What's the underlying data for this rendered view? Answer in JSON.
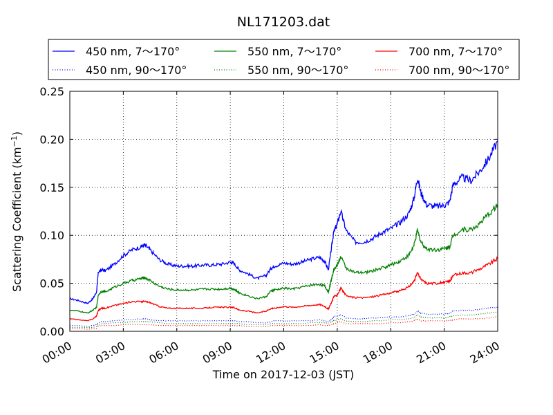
{
  "chart_data": {
    "type": "line",
    "title": "NL171203.dat",
    "xlabel": "Time on 2017-12-03 (JST)",
    "ylabel_main": "Scattering Coefficient (km",
    "ylabel_sup": "−1",
    "ylabel_end": ")",
    "xlim_hours": [
      0,
      24
    ],
    "ylim": [
      0.0,
      0.25
    ],
    "x_ticks": [
      {
        "hour": 0,
        "label": "00:00"
      },
      {
        "hour": 3,
        "label": "03:00"
      },
      {
        "hour": 6,
        "label": "06:00"
      },
      {
        "hour": 9,
        "label": "09:00"
      },
      {
        "hour": 12,
        "label": "12:00"
      },
      {
        "hour": 15,
        "label": "15:00"
      },
      {
        "hour": 18,
        "label": "18:00"
      },
      {
        "hour": 21,
        "label": "21:00"
      },
      {
        "hour": 24,
        "label": "24:00"
      }
    ],
    "y_ticks": [
      {
        "value": 0.0,
        "label": "0.00"
      },
      {
        "value": 0.05,
        "label": "0.05"
      },
      {
        "value": 0.1,
        "label": "0.10"
      },
      {
        "value": 0.15,
        "label": "0.15"
      },
      {
        "value": 0.2,
        "label": "0.20"
      },
      {
        "value": 0.25,
        "label": "0.25"
      }
    ],
    "grid": true,
    "legend_position": "top, outside plot (3 columns)",
    "x_hours": [
      0,
      0.5,
      1,
      1.3,
      1.5,
      1.6,
      1.8,
      2,
      2.5,
      3,
      3.5,
      4,
      4.2,
      4.5,
      5,
      5.5,
      6,
      6.5,
      7,
      7.5,
      8,
      8.5,
      9,
      9.2,
      9.5,
      10,
      10.5,
      11,
      11.3,
      11.5,
      12,
      12.5,
      13,
      13.5,
      14,
      14.3,
      14.5,
      14.7,
      14.8,
      15,
      15.2,
      15.5,
      16,
      16.5,
      17,
      17.5,
      18,
      18.5,
      19,
      19.3,
      19.5,
      19.7,
      20,
      20.5,
      21,
      21.3,
      21.5,
      22,
      22.5,
      23,
      23.5,
      24
    ],
    "series": [
      {
        "name": "450 nm, 7～170°",
        "color": "#0000ff",
        "style": "solid",
        "values": [
          0.034,
          0.032,
          0.029,
          0.034,
          0.041,
          0.062,
          0.064,
          0.063,
          0.07,
          0.079,
          0.085,
          0.088,
          0.09,
          0.085,
          0.075,
          0.07,
          0.068,
          0.068,
          0.068,
          0.069,
          0.069,
          0.07,
          0.072,
          0.071,
          0.064,
          0.06,
          0.055,
          0.058,
          0.066,
          0.068,
          0.071,
          0.07,
          0.072,
          0.075,
          0.077,
          0.073,
          0.064,
          0.09,
          0.103,
          0.112,
          0.125,
          0.105,
          0.093,
          0.093,
          0.097,
          0.103,
          0.107,
          0.113,
          0.122,
          0.138,
          0.16,
          0.144,
          0.132,
          0.13,
          0.131,
          0.135,
          0.153,
          0.16,
          0.157,
          0.167,
          0.18,
          0.198
        ]
      },
      {
        "name": "550 nm, 7～170°",
        "color": "#008000",
        "style": "solid",
        "values": [
          0.022,
          0.021,
          0.019,
          0.022,
          0.025,
          0.038,
          0.042,
          0.041,
          0.046,
          0.05,
          0.053,
          0.055,
          0.056,
          0.053,
          0.047,
          0.044,
          0.043,
          0.043,
          0.043,
          0.044,
          0.044,
          0.044,
          0.045,
          0.044,
          0.04,
          0.037,
          0.034,
          0.036,
          0.042,
          0.043,
          0.045,
          0.044,
          0.046,
          0.048,
          0.049,
          0.047,
          0.041,
          0.056,
          0.064,
          0.069,
          0.078,
          0.066,
          0.061,
          0.061,
          0.063,
          0.066,
          0.069,
          0.073,
          0.079,
          0.089,
          0.105,
          0.093,
          0.086,
          0.085,
          0.086,
          0.088,
          0.1,
          0.106,
          0.106,
          0.112,
          0.122,
          0.132
        ]
      },
      {
        "name": "700 nm, 7～170°",
        "color": "#ff0000",
        "style": "solid",
        "values": [
          0.013,
          0.012,
          0.011,
          0.013,
          0.016,
          0.022,
          0.024,
          0.024,
          0.027,
          0.029,
          0.031,
          0.031,
          0.031,
          0.03,
          0.026,
          0.024,
          0.024,
          0.024,
          0.024,
          0.024,
          0.025,
          0.025,
          0.025,
          0.025,
          0.022,
          0.021,
          0.019,
          0.021,
          0.024,
          0.024,
          0.026,
          0.025,
          0.026,
          0.027,
          0.028,
          0.026,
          0.023,
          0.031,
          0.036,
          0.038,
          0.045,
          0.037,
          0.035,
          0.035,
          0.036,
          0.038,
          0.04,
          0.042,
          0.046,
          0.052,
          0.061,
          0.054,
          0.05,
          0.05,
          0.051,
          0.052,
          0.058,
          0.061,
          0.061,
          0.065,
          0.07,
          0.076
        ]
      },
      {
        "name": "450 nm, 90～170°",
        "color": "#0000ff",
        "style": "dotted",
        "values": [
          0.006,
          0.006,
          0.005,
          0.006,
          0.007,
          0.009,
          0.01,
          0.01,
          0.011,
          0.012,
          0.012,
          0.013,
          0.013,
          0.012,
          0.011,
          0.011,
          0.011,
          0.011,
          0.011,
          0.011,
          0.011,
          0.011,
          0.011,
          0.011,
          0.01,
          0.01,
          0.009,
          0.009,
          0.01,
          0.011,
          0.011,
          0.011,
          0.011,
          0.011,
          0.012,
          0.011,
          0.01,
          0.013,
          0.015,
          0.016,
          0.017,
          0.014,
          0.013,
          0.013,
          0.014,
          0.014,
          0.015,
          0.015,
          0.016,
          0.018,
          0.021,
          0.019,
          0.018,
          0.018,
          0.018,
          0.019,
          0.021,
          0.022,
          0.022,
          0.023,
          0.024,
          0.025
        ]
      },
      {
        "name": "550 nm, 90～170°",
        "color": "#008000",
        "style": "dotted",
        "values": [
          0.004,
          0.004,
          0.004,
          0.004,
          0.005,
          0.007,
          0.008,
          0.008,
          0.009,
          0.009,
          0.01,
          0.01,
          0.01,
          0.01,
          0.009,
          0.008,
          0.008,
          0.008,
          0.008,
          0.008,
          0.008,
          0.008,
          0.008,
          0.008,
          0.008,
          0.007,
          0.007,
          0.007,
          0.008,
          0.008,
          0.008,
          0.008,
          0.008,
          0.009,
          0.009,
          0.009,
          0.008,
          0.01,
          0.011,
          0.012,
          0.013,
          0.011,
          0.01,
          0.01,
          0.011,
          0.011,
          0.012,
          0.012,
          0.013,
          0.014,
          0.017,
          0.015,
          0.014,
          0.014,
          0.014,
          0.015,
          0.016,
          0.017,
          0.017,
          0.018,
          0.019,
          0.02
        ]
      },
      {
        "name": "700 nm, 90～170°",
        "color": "#ff0000",
        "style": "dotted",
        "values": [
          0.003,
          0.003,
          0.002,
          0.003,
          0.003,
          0.005,
          0.006,
          0.006,
          0.006,
          0.007,
          0.007,
          0.007,
          0.007,
          0.007,
          0.006,
          0.006,
          0.006,
          0.006,
          0.006,
          0.006,
          0.006,
          0.006,
          0.006,
          0.006,
          0.006,
          0.005,
          0.005,
          0.005,
          0.006,
          0.006,
          0.006,
          0.006,
          0.006,
          0.006,
          0.007,
          0.006,
          0.006,
          0.007,
          0.008,
          0.009,
          0.01,
          0.008,
          0.008,
          0.008,
          0.008,
          0.008,
          0.009,
          0.009,
          0.01,
          0.011,
          0.013,
          0.011,
          0.011,
          0.011,
          0.011,
          0.011,
          0.012,
          0.013,
          0.013,
          0.013,
          0.014,
          0.015
        ]
      }
    ],
    "legend_order": [
      0,
      3,
      1,
      4,
      2,
      5
    ]
  }
}
